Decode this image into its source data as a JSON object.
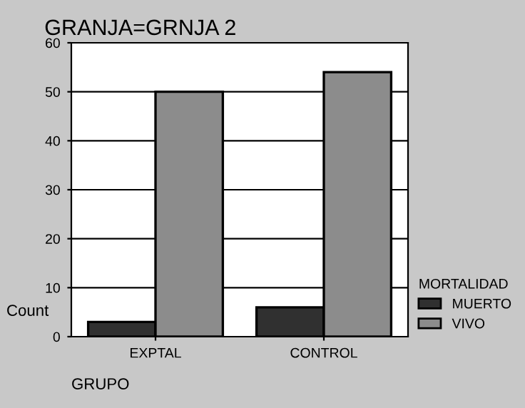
{
  "chart_data": {
    "type": "bar",
    "title": "GRANJA=GRNJA 2",
    "xlabel": "GRUPO",
    "ylabel": "Count",
    "legend_title": "MORTALIDAD",
    "categories": [
      "EXPTAL",
      "CONTROL"
    ],
    "series": [
      {
        "name": "MUERTO",
        "color": "#303030",
        "values": [
          3,
          6
        ]
      },
      {
        "name": "VIVO",
        "color": "#8c8c8c",
        "values": [
          50,
          54
        ]
      }
    ],
    "ylim": [
      0,
      60
    ],
    "yticks": [
      0,
      10,
      20,
      30,
      40,
      50,
      60
    ],
    "grid": "y",
    "legend": "right"
  }
}
